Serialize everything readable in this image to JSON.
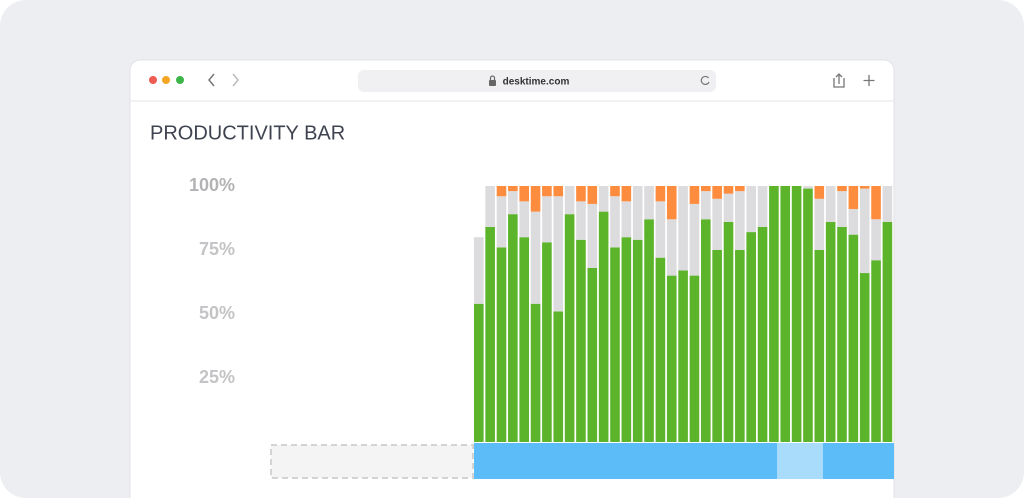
{
  "browser": {
    "url": "desktime.com"
  },
  "chart_data": {
    "type": "bar",
    "stacked": true,
    "title": "PRODUCTIVITY BAR",
    "categories": [
      null,
      null,
      null,
      null,
      null,
      null,
      null,
      null,
      null,
      null,
      null,
      null,
      null,
      null,
      null,
      null,
      null,
      null,
      null,
      null,
      null,
      null,
      null,
      null,
      null,
      null,
      null,
      null,
      null,
      null,
      null,
      null,
      null,
      null,
      null,
      null,
      null
    ],
    "series": [
      {
        "color": "#5bb42a",
        "values": [
          54,
          84,
          76,
          89,
          80,
          54,
          78,
          51,
          89,
          79,
          68,
          90,
          76,
          80,
          79,
          87,
          72,
          65,
          67,
          65,
          87,
          75,
          86,
          75,
          82,
          84,
          100,
          100,
          100,
          99,
          75,
          86,
          84,
          81,
          66,
          71,
          86
        ]
      },
      {
        "color": "#dcdcdf",
        "values": [
          26,
          16,
          20,
          9,
          14,
          36,
          18,
          45,
          11,
          15,
          25,
          10,
          20,
          14,
          21,
          13,
          22,
          22,
          33,
          28,
          11,
          20,
          11,
          23,
          18,
          16,
          0,
          0,
          0,
          1,
          20,
          14,
          14,
          10,
          33,
          16,
          14
        ]
      },
      {
        "color": "#fd8c3e",
        "values": [
          0,
          0,
          4,
          2,
          6,
          10,
          4,
          4,
          0,
          6,
          7,
          0,
          4,
          6,
          0,
          0,
          6,
          13,
          0,
          7,
          2,
          5,
          3,
          2,
          0,
          0,
          0,
          0,
          0,
          0,
          5,
          0,
          2,
          9,
          1,
          13,
          0
        ]
      }
    ],
    "ylim": [
      0,
      100
    ],
    "yticks": [
      {
        "value": 25,
        "label": "25%"
      },
      {
        "value": 50,
        "label": "50%"
      },
      {
        "value": 75,
        "label": "75%"
      },
      {
        "value": 100,
        "label": "100%"
      }
    ],
    "grid": false
  }
}
